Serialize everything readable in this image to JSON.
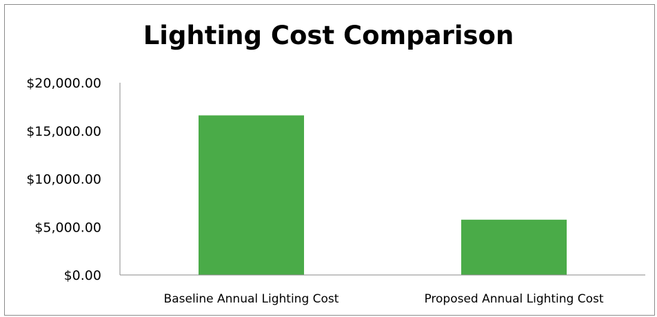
{
  "chart_data": {
    "type": "bar",
    "title": "Lighting Cost Comparison",
    "categories": [
      "Baseline Annual Lighting Cost",
      "Proposed Annual Lighting Cost"
    ],
    "values": [
      16600,
      5750
    ],
    "ylim": [
      0,
      20000
    ],
    "yticks": [
      0,
      5000,
      10000,
      15000,
      20000
    ],
    "ytick_labels": [
      "$0.00",
      "$5,000.00",
      "$10,000.00",
      "$15,000.00",
      "$20,000.00"
    ],
    "xlabel": "",
    "ylabel": "",
    "grid": false,
    "legend": "none",
    "bar_color": "#4aab48"
  }
}
